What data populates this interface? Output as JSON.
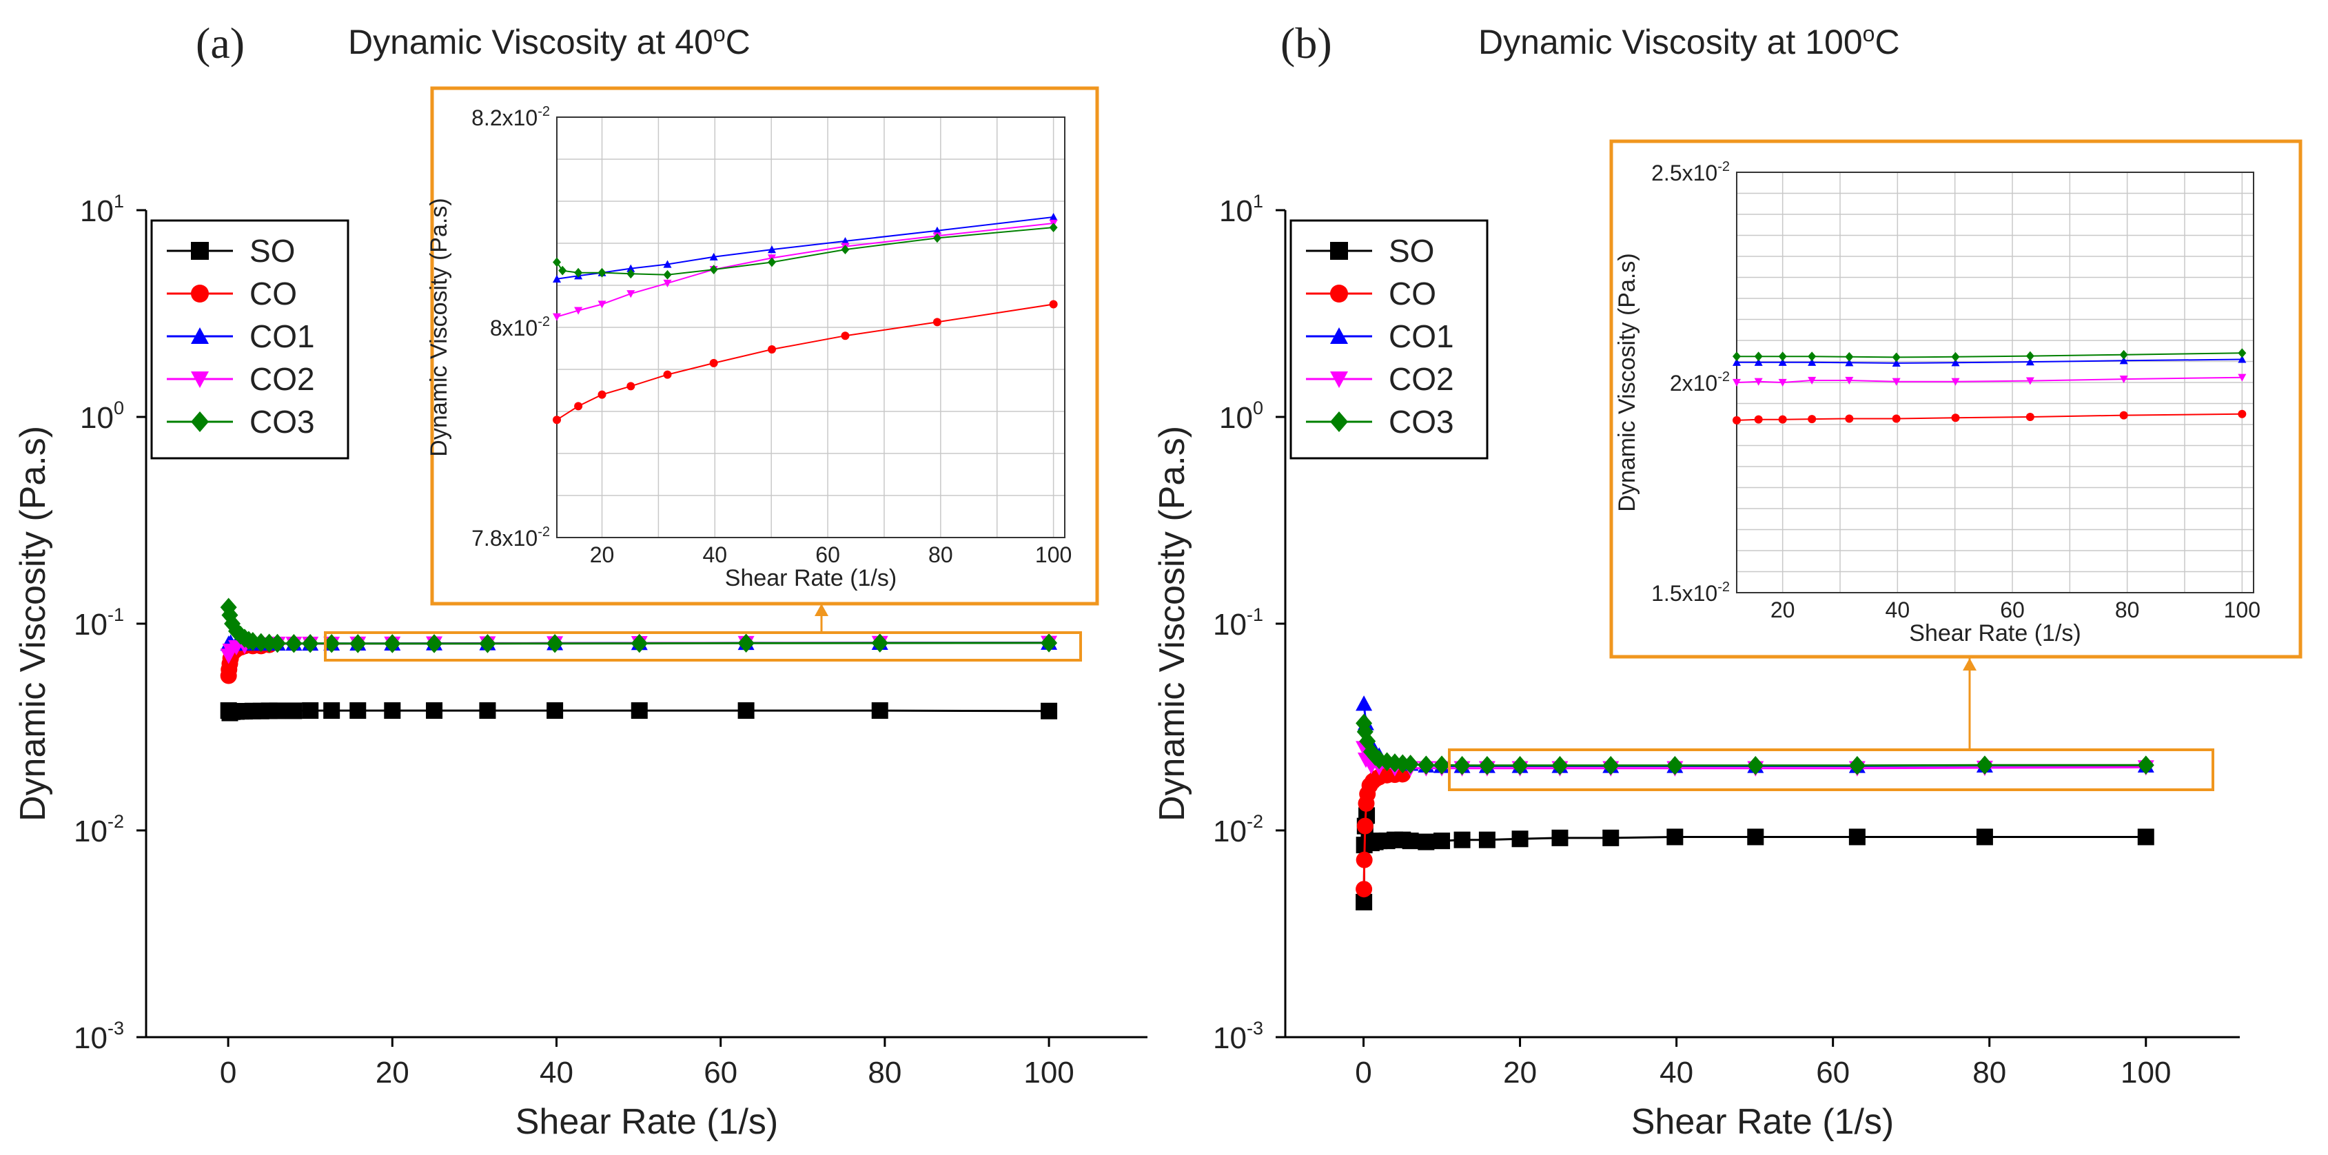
{
  "figure": {
    "panels": [
      {
        "letter": "(a)",
        "title_main": "Dynamic Viscosity at 40",
        "title_sup": "o",
        "title_end": "C"
      },
      {
        "letter": "(b)",
        "title_main": "Dynamic Viscosity at 100",
        "title_sup": "o",
        "title_end": "C"
      }
    ]
  },
  "chart_data": [
    {
      "type": "scatter",
      "title": "Dynamic Viscosity at 40oC",
      "xlabel": "Shear Rate (1/s)",
      "ylabel": "Dynamic Viscosity (Pa.s)",
      "yscale": "log",
      "xlim": [
        -10,
        112
      ],
      "ylim": [
        0.001,
        10
      ],
      "xticks": [
        0,
        20,
        40,
        60,
        80,
        100
      ],
      "yticks": [
        {
          "value": 0.001,
          "base": "10",
          "exp": "-3"
        },
        {
          "value": 0.01,
          "base": "10",
          "exp": "-2"
        },
        {
          "value": 0.1,
          "base": "10",
          "exp": "-1"
        },
        {
          "value": 1,
          "base": "10",
          "exp": "0"
        },
        {
          "value": 10,
          "base": "10",
          "exp": "1"
        }
      ],
      "legend": [
        "SO",
        "CO",
        "CO1",
        "CO2",
        "CO3"
      ],
      "series": [
        {
          "name": "SO",
          "color": "#000000",
          "marker": "square",
          "x": [
            0.05,
            0.2,
            0.5,
            1,
            1.5,
            2,
            3,
            4,
            5,
            6,
            8,
            10,
            12.6,
            15.8,
            20,
            25.1,
            31.6,
            39.8,
            50.1,
            63.1,
            79.4,
            100
          ],
          "y": [
            0.038,
            0.037,
            0.0375,
            0.0376,
            0.0377,
            0.0377,
            0.0378,
            0.0378,
            0.0379,
            0.0379,
            0.0379,
            0.038,
            0.038,
            0.038,
            0.038,
            0.038,
            0.038,
            0.038,
            0.038,
            0.038,
            0.038,
            0.0378
          ]
        },
        {
          "name": "CO",
          "color": "#ff0000",
          "marker": "circle",
          "x": [
            0.05,
            0.1,
            0.2,
            0.3,
            0.5,
            0.8,
            1.2,
            1.6,
            2,
            3,
            4,
            5
          ],
          "y": [
            0.056,
            0.06,
            0.064,
            0.068,
            0.072,
            0.074,
            0.076,
            0.077,
            0.078,
            0.078,
            0.078,
            0.079
          ]
        },
        {
          "name": "CO1",
          "color": "#0000ff",
          "marker": "triangle-up",
          "x": [
            0.05,
            0.3,
            1,
            2,
            4,
            6,
            8,
            10,
            12.6,
            15.8,
            20,
            25.1,
            31.6,
            39.8,
            50.1,
            63.1,
            79.4,
            100
          ],
          "y": [
            0.08,
            0.081,
            0.08,
            0.08,
            0.08,
            0.0801,
            0.0801,
            0.0801,
            0.0802,
            0.0802,
            0.0802,
            0.0803,
            0.0804,
            0.0805,
            0.0806,
            0.0807,
            0.0808,
            0.0809
          ]
        },
        {
          "name": "CO2",
          "color": "#ff00ff",
          "marker": "triangle-down",
          "x": [
            0.05,
            0.3,
            1,
            2,
            4,
            6,
            8,
            10,
            12.6,
            15.8,
            20,
            25.1,
            31.6,
            39.8,
            50.1,
            63.1,
            79.4,
            100
          ],
          "y": [
            0.07,
            0.074,
            0.077,
            0.078,
            0.0795,
            0.08,
            0.08,
            0.08,
            0.08,
            0.0801,
            0.0801,
            0.0802,
            0.0803,
            0.0804,
            0.0805,
            0.0806,
            0.0807,
            0.0808
          ]
        },
        {
          "name": "CO3",
          "color": "#008000",
          "marker": "diamond",
          "x": [
            0.05,
            0.2,
            0.5,
            1,
            1.5,
            2,
            2.5,
            3,
            4,
            5,
            6,
            8,
            10,
            12.6,
            15.8,
            20,
            25.1,
            31.6,
            39.8,
            50.1,
            63.1,
            79.4,
            100
          ],
          "y": [
            0.12,
            0.11,
            0.1,
            0.092,
            0.088,
            0.085,
            0.083,
            0.082,
            0.081,
            0.0805,
            0.0803,
            0.0802,
            0.0802,
            0.0802,
            0.0801,
            0.0801,
            0.0801,
            0.0801,
            0.0802,
            0.0803,
            0.0805,
            0.0806,
            0.0807
          ]
        }
      ],
      "inset": {
        "xlabel": "Shear Rate (1/s)",
        "ylabel": "Dynamic Viscosity (Pa.s)",
        "xlim": [
          12,
          102
        ],
        "ylim": [
          0.078,
          0.082
        ],
        "xticks": [
          20,
          40,
          60,
          80,
          100
        ],
        "yticks": [
          {
            "value": 0.078,
            "mant": "7.8x10",
            "exp": "-2"
          },
          {
            "value": 0.08,
            "mant": "8x10",
            "exp": "-2"
          },
          {
            "value": 0.082,
            "mant": "8.2x10",
            "exp": "-2"
          }
        ],
        "series": [
          {
            "name": "CO",
            "color": "#ff0000",
            "marker": "circle",
            "x": [
              12,
              15.8,
              20,
              25.1,
              31.6,
              39.8,
              50.1,
              63.1,
              79.4,
              100
            ],
            "y": [
              0.07912,
              0.07925,
              0.07936,
              0.07944,
              0.07955,
              0.07966,
              0.07979,
              0.07992,
              0.08005,
              0.08022
            ]
          },
          {
            "name": "CO1",
            "color": "#0000ff",
            "marker": "triangle-up",
            "x": [
              12,
              15.8,
              20,
              25.1,
              31.6,
              39.8,
              50.1,
              63.1,
              79.4,
              100
            ],
            "y": [
              0.08046,
              0.08049,
              0.08052,
              0.08056,
              0.0806,
              0.08067,
              0.08074,
              0.08082,
              0.08092,
              0.08105
            ]
          },
          {
            "name": "CO2",
            "color": "#ff00ff",
            "marker": "triangle-down",
            "x": [
              12,
              15.8,
              20,
              25.1,
              31.6,
              39.8,
              50.1,
              63.1,
              79.4,
              100
            ],
            "y": [
              0.0801,
              0.08016,
              0.08022,
              0.08032,
              0.08042,
              0.08055,
              0.08066,
              0.08077,
              0.08087,
              0.08099
            ]
          },
          {
            "name": "CO3",
            "color": "#008000",
            "marker": "diamond",
            "x": [
              12,
              13,
              15.8,
              20,
              25.1,
              31.6,
              39.8,
              50.1,
              63.1,
              79.4,
              100
            ],
            "y": [
              0.08062,
              0.08054,
              0.08052,
              0.08052,
              0.08051,
              0.0805,
              0.08055,
              0.08062,
              0.08074,
              0.08085,
              0.08095
            ]
          }
        ]
      }
    },
    {
      "type": "scatter",
      "title": "Dynamic Viscosity at 100oC",
      "xlabel": "Shear Rate (1/s)",
      "ylabel": "Dynamic Viscosity (Pa.s)",
      "yscale": "log",
      "xlim": [
        -10,
        112
      ],
      "ylim": [
        0.001,
        10
      ],
      "xticks": [
        0,
        20,
        40,
        60,
        80,
        100
      ],
      "yticks": [
        {
          "value": 0.001,
          "base": "10",
          "exp": "-3"
        },
        {
          "value": 0.01,
          "base": "10",
          "exp": "-2"
        },
        {
          "value": 0.1,
          "base": "10",
          "exp": "-1"
        },
        {
          "value": 1,
          "base": "10",
          "exp": "0"
        },
        {
          "value": 10,
          "base": "10",
          "exp": "1"
        }
      ],
      "legend": [
        "SO",
        "CO",
        "CO1",
        "CO2",
        "CO3"
      ],
      "series": [
        {
          "name": "SO",
          "color": "#000000",
          "marker": "square",
          "x": [
            0.05,
            0.1,
            0.2,
            0.4,
            0.7,
            1,
            1.5,
            2,
            3,
            4,
            5,
            6,
            8,
            10,
            12.6,
            15.8,
            20,
            25.1,
            31.6,
            39.8,
            50.1,
            63.1,
            79.4,
            100
          ],
          "y": [
            0.0045,
            0.0085,
            0.0105,
            0.0118,
            0.0088,
            0.0087,
            0.0088,
            0.0089,
            0.0089,
            0.009,
            0.009,
            0.0089,
            0.0088,
            0.0089,
            0.009,
            0.009,
            0.0091,
            0.0092,
            0.0092,
            0.0093,
            0.0093,
            0.0093,
            0.0093,
            0.0093
          ]
        },
        {
          "name": "CO",
          "color": "#ff0000",
          "marker": "circle",
          "x": [
            0.05,
            0.1,
            0.2,
            0.35,
            0.5,
            0.8,
            1.2,
            1.6,
            2,
            3,
            4,
            5
          ],
          "y": [
            0.0052,
            0.0072,
            0.0105,
            0.0135,
            0.015,
            0.0165,
            0.0173,
            0.0178,
            0.0181,
            0.0185,
            0.0186,
            0.0187
          ]
        },
        {
          "name": "CO1",
          "color": "#0000ff",
          "marker": "triangle-up",
          "x": [
            0.05,
            0.3,
            1,
            2,
            4,
            6,
            8,
            10,
            12.6,
            15.8,
            20,
            25.1,
            31.6,
            39.8,
            50.1,
            63.1,
            79.4,
            100
          ],
          "y": [
            0.041,
            0.033,
            0.026,
            0.023,
            0.0215,
            0.021,
            0.0206,
            0.0205,
            0.0205,
            0.0205,
            0.0205,
            0.0205,
            0.0205,
            0.0205,
            0.0205,
            0.0205,
            0.0206,
            0.0206
          ]
        },
        {
          "name": "CO2",
          "color": "#ff00ff",
          "marker": "triangle-down",
          "x": [
            0.05,
            0.3,
            1,
            2,
            4,
            6,
            8,
            10,
            12.6,
            15.8,
            20,
            25.1,
            31.6,
            39.8,
            50.1,
            63.1,
            79.4,
            100
          ],
          "y": [
            0.025,
            0.022,
            0.0205,
            0.0202,
            0.02,
            0.02,
            0.02,
            0.02,
            0.02,
            0.02,
            0.02,
            0.02,
            0.02,
            0.02,
            0.02,
            0.02,
            0.0201,
            0.0202
          ]
        },
        {
          "name": "CO3",
          "color": "#008000",
          "marker": "diamond",
          "x": [
            0.05,
            0.2,
            0.5,
            1,
            1.5,
            2,
            3,
            4,
            5,
            6,
            8,
            10,
            12.6,
            15.8,
            20,
            25.1,
            31.6,
            39.8,
            50.1,
            63.1,
            79.4,
            100
          ],
          "y": [
            0.033,
            0.03,
            0.027,
            0.024,
            0.0228,
            0.022,
            0.0215,
            0.0212,
            0.021,
            0.0209,
            0.0207,
            0.0207,
            0.0206,
            0.0206,
            0.0206,
            0.0206,
            0.0206,
            0.0206,
            0.0206,
            0.0206,
            0.0207,
            0.0207
          ]
        }
      ],
      "inset": {
        "xlabel": "Shear Rate (1/s)",
        "ylabel": "Dynamic Viscosity (Pa.s)",
        "xlim": [
          12,
          102
        ],
        "ylim": [
          0.015,
          0.025
        ],
        "xticks": [
          20,
          40,
          60,
          80,
          100
        ],
        "yticks": [
          {
            "value": 0.015,
            "mant": "1.5x10",
            "exp": "-2"
          },
          {
            "value": 0.02,
            "mant": "2x10",
            "exp": "-2"
          },
          {
            "value": 0.025,
            "mant": "2.5x10",
            "exp": "-2"
          }
        ],
        "series": [
          {
            "name": "CO",
            "color": "#ff0000",
            "marker": "circle",
            "x": [
              12,
              15.8,
              20,
              25.1,
              31.6,
              39.8,
              50.1,
              63.1,
              79.4,
              100
            ],
            "y": [
              0.0191,
              0.01912,
              0.01912,
              0.01913,
              0.01914,
              0.01914,
              0.01916,
              0.01918,
              0.01922,
              0.01925
            ]
          },
          {
            "name": "CO1",
            "color": "#0000ff",
            "marker": "triangle-up",
            "x": [
              12,
              15.8,
              20,
              25.1,
              31.6,
              39.8,
              50.1,
              63.1,
              79.4,
              100
            ],
            "y": [
              0.02048,
              0.02048,
              0.02048,
              0.02048,
              0.02047,
              0.02046,
              0.02047,
              0.02049,
              0.02052,
              0.02055
            ]
          },
          {
            "name": "CO2",
            "color": "#ff00ff",
            "marker": "triangle-down",
            "x": [
              12,
              15.8,
              20,
              25.1,
              31.6,
              39.8,
              50.1,
              63.1,
              79.4,
              100
            ],
            "y": [
              0.02,
              0.02002,
              0.02,
              0.02005,
              0.02005,
              0.02002,
              0.02002,
              0.02004,
              0.02008,
              0.02012
            ]
          },
          {
            "name": "CO3",
            "color": "#008000",
            "marker": "diamond",
            "x": [
              12,
              15.8,
              20,
              25.1,
              31.6,
              39.8,
              50.1,
              63.1,
              79.4,
              100
            ],
            "y": [
              0.02062,
              0.02062,
              0.02062,
              0.02062,
              0.02061,
              0.0206,
              0.02061,
              0.02063,
              0.02066,
              0.0207
            ]
          }
        ]
      }
    }
  ]
}
